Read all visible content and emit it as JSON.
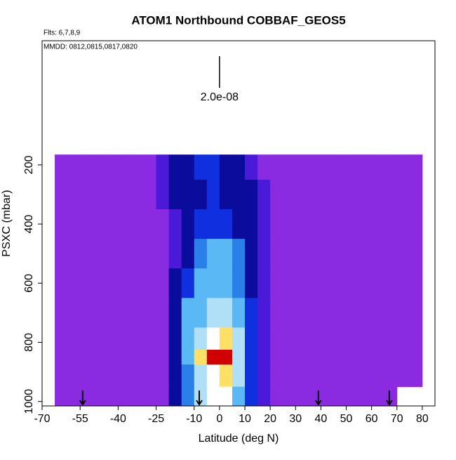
{
  "chart_data": {
    "type": "heatmap",
    "title": "ATOM1 Northbound COBBAF_GEOS5",
    "subtitle": "Flts: 6,7,8,9",
    "annotation": "MMDD: 0812,0815,0817,0820",
    "scale_label": "2.0e-08",
    "scale_x": 0,
    "xlabel": "Latitude (deg N)",
    "ylabel": "PSXC (mbar)",
    "xlim": [
      -70,
      85
    ],
    "ylim": [
      1015,
      -220
    ],
    "xticks": [
      -70,
      -55,
      -40,
      -25,
      -10,
      0,
      10,
      20,
      30,
      40,
      50,
      60,
      70,
      80
    ],
    "yticks": [
      200,
      400,
      600,
      800,
      1000
    ],
    "xbins": [
      -65,
      -60,
      -50,
      -40,
      -30,
      -25,
      -20,
      -15,
      -10,
      -5,
      0,
      5,
      10,
      15,
      20,
      30,
      40,
      50,
      60,
      70,
      80
    ],
    "ybins": [
      165,
      250,
      350,
      450,
      550,
      650,
      750,
      825,
      875,
      950,
      1015
    ],
    "z": [
      [
        0,
        0,
        0,
        0,
        0,
        1,
        2,
        2,
        3,
        3,
        2,
        2,
        1,
        0,
        0,
        0,
        0,
        0,
        0,
        0
      ],
      [
        0,
        0,
        0,
        0,
        0,
        1,
        2,
        2,
        2,
        3,
        2,
        2,
        2,
        1,
        0,
        0,
        0,
        0,
        0,
        0
      ],
      [
        0,
        0,
        0,
        0,
        0,
        0,
        1,
        2,
        3,
        3,
        3,
        2,
        2,
        1,
        0,
        0,
        0,
        0,
        0,
        0
      ],
      [
        0,
        0,
        0,
        0,
        0,
        0,
        1,
        2,
        4,
        5,
        5,
        4,
        2,
        1,
        0,
        0,
        0,
        0,
        0,
        0
      ],
      [
        0,
        0,
        0,
        0,
        0,
        0,
        2,
        3,
        5,
        5,
        5,
        4,
        2,
        1,
        0,
        0,
        0,
        0,
        0,
        0
      ],
      [
        0,
        0,
        0,
        0,
        0,
        0,
        2,
        5,
        5,
        6,
        6,
        5,
        3,
        1,
        0,
        0,
        0,
        0,
        0,
        0
      ],
      [
        0,
        0,
        0,
        0,
        0,
        0,
        2,
        5,
        6,
        7,
        8,
        6,
        3,
        1,
        0,
        0,
        0,
        0,
        0,
        0
      ],
      [
        0,
        0,
        0,
        0,
        0,
        0,
        2,
        5,
        8,
        10,
        10,
        6,
        3,
        1,
        0,
        0,
        0,
        0,
        0,
        0
      ],
      [
        0,
        0,
        0,
        0,
        0,
        0,
        2,
        4,
        6,
        7,
        8,
        6,
        3,
        1,
        0,
        0,
        0,
        0,
        0,
        0
      ],
      [
        0,
        0,
        0,
        0,
        0,
        0,
        2,
        4,
        6,
        7,
        7,
        5,
        3,
        1,
        0,
        0,
        0,
        0,
        0,
        null
      ]
    ],
    "colors": [
      "#8a2be2",
      "#4a1ad8",
      "#0c0c9c",
      "#1030e0",
      "#2a7fe8",
      "#5ab8f5",
      "#b0e0f8",
      "#ffffff",
      "#ffe066",
      "#ff8000",
      "#d00000"
    ],
    "arrows": [
      -54,
      -8,
      39,
      67
    ]
  }
}
